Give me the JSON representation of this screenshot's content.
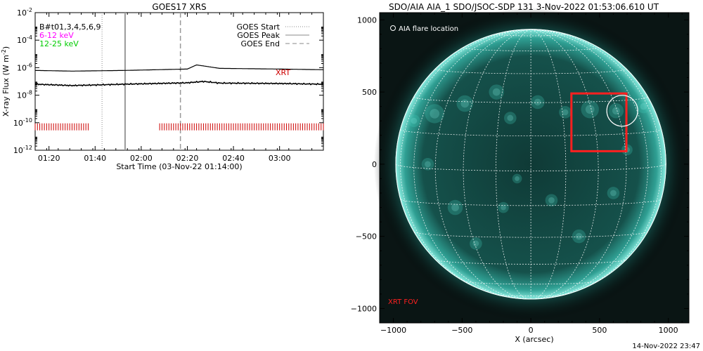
{
  "footer": {
    "timestamp": "14-Nov-2022 23:47"
  },
  "chart_data": [
    {
      "type": "line",
      "title": "GOES17 XRS",
      "xlabel": "Start Time (03-Nov-22 01:14:00)",
      "ylabel": "X-ray Flux (W m",
      "ylabel_sup": "-2",
      "ylabel_end": ")",
      "yscale": "log",
      "ylim": [
        1e-12,
        0.01
      ],
      "xlim": [
        "01:14",
        "03:19"
      ],
      "x_ticks": [
        "01:20",
        "01:40",
        "02:00",
        "02:20",
        "02:40",
        "03:00"
      ],
      "y_ticks": [
        {
          "base": "10",
          "exp": "-2",
          "value": -2
        },
        {
          "base": "10",
          "exp": "-4",
          "value": -4
        },
        {
          "base": "10",
          "exp": "-6",
          "value": -6
        },
        {
          "base": "10",
          "exp": "-8",
          "value": -8
        },
        {
          "base": "10",
          "exp": "-10",
          "value": -10
        },
        {
          "base": "10",
          "exp": "-12",
          "value": -12
        }
      ],
      "legend_left": [
        {
          "label": "B#t01,3,4,5,6,9",
          "color": "#000000"
        },
        {
          "label": "6-12 keV",
          "color": "#ff00ff"
        },
        {
          "label": "12-25 keV",
          "color": "#00cc00"
        }
      ],
      "legend_right": [
        {
          "label": "GOES Start",
          "style": "dotted"
        },
        {
          "label": "GOES Peak",
          "style": "solid"
        },
        {
          "label": "GOES End",
          "style": "dashed"
        }
      ],
      "goes_markers": {
        "start": "01:43",
        "peak": "01:53",
        "end": "02:17"
      },
      "series": [
        {
          "name": "",
          "x": [
            "01:14",
            "01:30",
            "01:53",
            "02:20",
            "02:24",
            "02:28",
            "02:34",
            "03:00",
            "03:19"
          ],
          "log_flux": [
            -6.2,
            -6.25,
            -6.2,
            -6.1,
            -5.8,
            -5.9,
            -6.05,
            -6.1,
            -6.15
          ]
        },
        {
          "name": "",
          "x": [
            "01:14",
            "01:30",
            "01:53",
            "02:20",
            "02:27",
            "02:34",
            "03:00",
            "03:19"
          ],
          "log_flux": [
            -7.2,
            -7.3,
            -7.2,
            -7.1,
            -7.0,
            -7.12,
            -7.15,
            -7.2
          ]
        }
      ],
      "xrt": {
        "label": "XRT",
        "color": "#cc0000",
        "level": -10.3,
        "coverage": [
          [
            "01:14",
            "01:37"
          ],
          [
            "02:08",
            "03:19"
          ]
        ]
      }
    },
    {
      "type": "image",
      "title": "SDO/AIA AIA_1 SDO/JSOC-SDP 131  3-Nov-2022 01:53:06.610 UT",
      "xlabel": "X (arcsec)",
      "xlim": [
        -1100,
        1150
      ],
      "ylim": [
        -1100,
        1050
      ],
      "x_ticks": [
        -1000,
        -500,
        0,
        500,
        1000
      ],
      "y_ticks": [
        -1000,
        -500,
        0,
        500,
        1000
      ],
      "solar_radius_arcsec": 985,
      "annotations": {
        "flare_legend": "AIA flare location",
        "flare_location": [
          665,
          370
        ],
        "xrt_fov_label": "XRT FOV",
        "xrt_fov": [
          [
            295,
            90
          ],
          [
            695,
            490
          ]
        ]
      }
    }
  ]
}
